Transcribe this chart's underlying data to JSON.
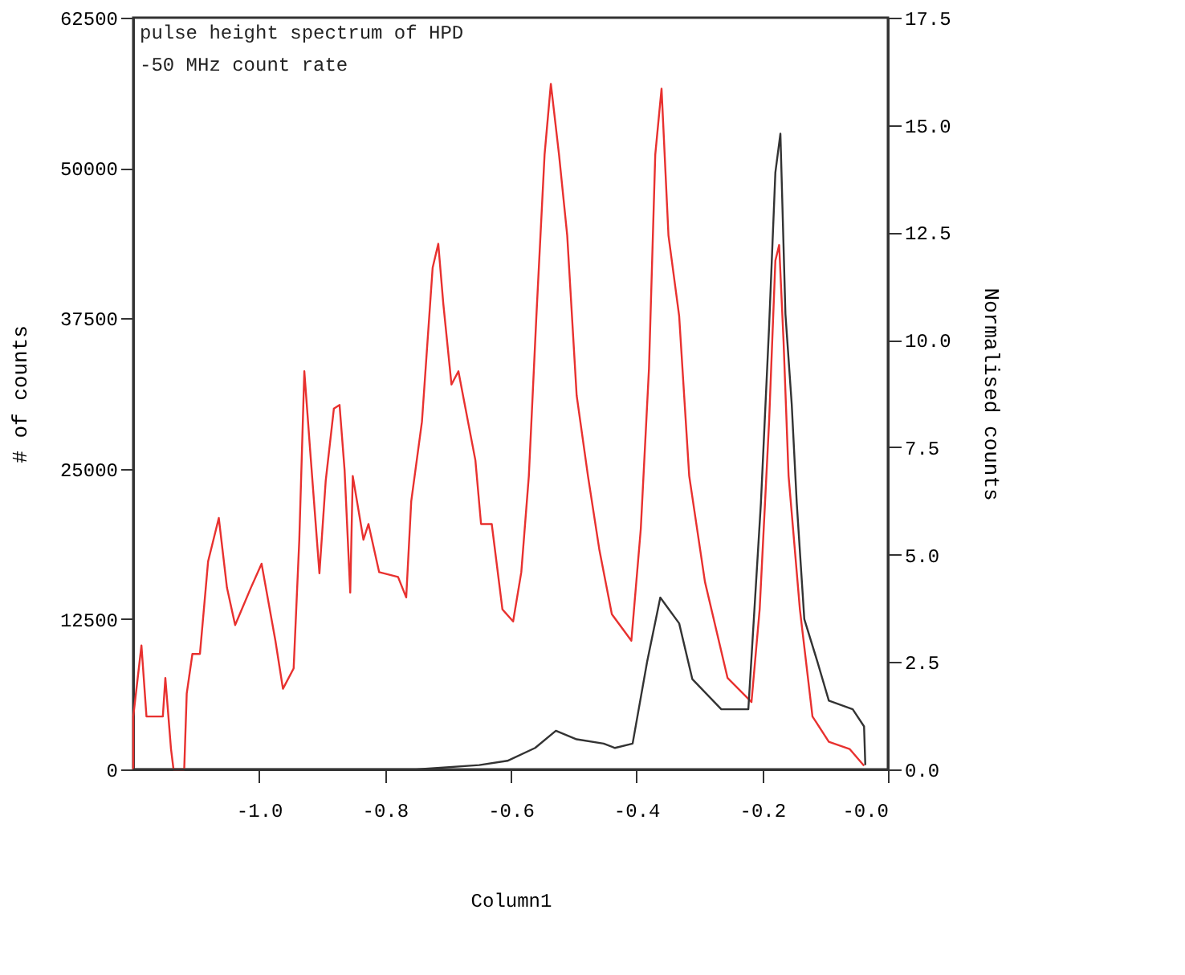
{
  "chart_data": {
    "type": "line",
    "xlabel": "Column1",
    "ylabel": "# of counts",
    "y2label": "Normalised counts",
    "annotations": [
      "pulse height spectrum of HPD",
      "-50 MHz count rate"
    ],
    "xlim": [
      -1.2,
      0.0
    ],
    "xticks": [
      {
        "value": -1.0,
        "label": "-1.0"
      },
      {
        "value": -0.8,
        "label": "-0.8"
      },
      {
        "value": -0.6,
        "label": "-0.6"
      },
      {
        "value": -0.4,
        "label": "-0.4"
      },
      {
        "value": -0.2,
        "label": "-0.2"
      },
      {
        "value": 0.0,
        "label": "-0.0"
      }
    ],
    "ylim": [
      0,
      62500
    ],
    "yticks": [
      0,
      12500,
      25000,
      37500,
      50000,
      62500
    ],
    "y2lim": [
      0,
      17.5
    ],
    "y2ticks": [
      {
        "value": 0,
        "label": "0.0"
      },
      {
        "value": 2.5,
        "label": "2.5"
      },
      {
        "value": 5,
        "label": "5.0"
      },
      {
        "value": 7.5,
        "label": "7.5"
      },
      {
        "value": 10,
        "label": "10.0"
      },
      {
        "value": 12.5,
        "label": "12.5"
      },
      {
        "value": 15,
        "label": "15.0"
      },
      {
        "value": 17.5,
        "label": "17.5"
      }
    ],
    "grid": false,
    "legend": false,
    "marker": "none",
    "line_style": "solid",
    "series": [
      {
        "color": "#e8312f",
        "x": [
          -1.2,
          -1.2,
          -1.187,
          -1.179,
          -1.153,
          -1.149,
          -1.14,
          -1.136,
          -1.119,
          -1.115,
          -1.106,
          -1.094,
          -1.081,
          -1.064,
          -1.051,
          -1.038,
          -1.013,
          -0.996,
          -0.974,
          -0.962,
          -0.945,
          -0.936,
          -0.928,
          -0.919,
          -0.904,
          -0.894,
          -0.881,
          -0.872,
          -0.864,
          -0.855,
          -0.851,
          -0.834,
          -0.826,
          -0.809,
          -0.779,
          -0.766,
          -0.758,
          -0.741,
          -0.724,
          -0.715,
          -0.707,
          -0.694,
          -0.683,
          -0.656,
          -0.647,
          -0.63,
          -0.613,
          -0.596,
          -0.583,
          -0.571,
          -0.559,
          -0.546,
          -0.536,
          -0.523,
          -0.51,
          -0.495,
          -0.477,
          -0.459,
          -0.439,
          -0.408,
          -0.393,
          -0.38,
          -0.37,
          -0.36,
          -0.349,
          -0.332,
          -0.316,
          -0.291,
          -0.255,
          -0.217,
          -0.204,
          -0.189,
          -0.179,
          -0.173,
          -0.166,
          -0.158,
          -0.14,
          -0.12,
          -0.094,
          -0.061,
          -0.038
        ],
        "values": [
          0,
          4400,
          10300,
          4400,
          4400,
          7600,
          1700,
          0,
          0,
          6300,
          9600,
          9600,
          17300,
          20900,
          15100,
          12000,
          15100,
          17100,
          10700,
          6700,
          8400,
          19100,
          33100,
          26700,
          16300,
          24000,
          30000,
          30300,
          24900,
          14700,
          24400,
          19100,
          20400,
          16400,
          16000,
          14300,
          22300,
          28900,
          41700,
          43700,
          38700,
          32000,
          33100,
          25700,
          20400,
          20400,
          13300,
          12300,
          16400,
          24400,
          37700,
          51100,
          57000,
          51100,
          44400,
          31100,
          24400,
          18300,
          12900,
          10700,
          20000,
          33300,
          51100,
          56600,
          44400,
          37700,
          24400,
          15600,
          7600,
          5600,
          13300,
          28900,
          42300,
          43600,
          35600,
          24400,
          13300,
          4400,
          2300,
          1700,
          300
        ]
      },
      {
        "color": "#333333",
        "axis": "y2",
        "x": [
          -1.2,
          -0.75,
          -0.65,
          -0.605,
          -0.561,
          -0.528,
          -0.495,
          -0.452,
          -0.434,
          -0.406,
          -0.383,
          -0.362,
          -0.332,
          -0.311,
          -0.265,
          -0.222,
          -0.202,
          -0.189,
          -0.179,
          -0.171,
          -0.163,
          -0.153,
          -0.145,
          -0.133,
          -0.112,
          -0.094,
          -0.056,
          -0.038,
          -0.036
        ],
        "values": [
          0,
          0,
          0.1,
          0.2,
          0.5,
          0.9,
          0.7,
          0.6,
          0.5,
          0.6,
          2.5,
          4.0,
          3.4,
          2.1,
          1.4,
          1.4,
          6.2,
          10.3,
          13.9,
          14.8,
          10.6,
          8.5,
          6.2,
          3.5,
          2.5,
          1.6,
          1.4,
          1.0,
          0.1
        ]
      }
    ]
  }
}
